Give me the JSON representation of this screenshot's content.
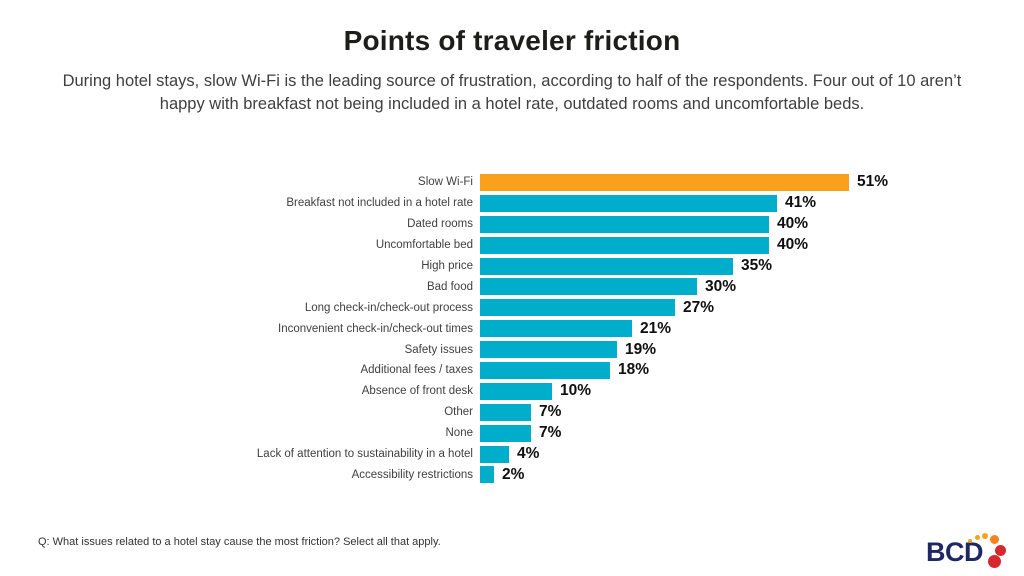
{
  "title": "Points of traveler friction",
  "subtitle": "During hotel stays, slow Wi-Fi is the leading source of frustration, according to half of the respondents. Four out of 10 aren’t happy with breakfast not being included in a hotel rate, outdated rooms and uncomfortable beds.",
  "footnote": "Q: What issues related to a hotel stay cause the most friction? Select all that apply.",
  "logo": {
    "text": "BCD"
  },
  "colors": {
    "bar": "#00AECB",
    "highlight": "#F9A01C",
    "logo_navy": "#1E2864",
    "logo_orange": "#F9A01C",
    "logo_orange2": "#F58220",
    "logo_red": "#D7282F"
  },
  "chart_data": {
    "type": "bar",
    "orientation": "horizontal",
    "title": "Points of traveler friction",
    "categories": [
      "Slow Wi-Fi",
      "Breakfast not included in a hotel rate",
      "Dated rooms",
      "Uncomfortable bed",
      "High price",
      "Bad food",
      "Long check-in/check-out process",
      "Inconvenient check-in/check-out times",
      "Safety issues",
      "Additional fees / taxes",
      "Absence of front desk",
      "Other",
      "None",
      "Lack of attention to sustainability in a hotel",
      "Accessibility restrictions"
    ],
    "values": [
      51,
      41,
      40,
      40,
      35,
      30,
      27,
      21,
      19,
      18,
      10,
      7,
      7,
      4,
      2
    ],
    "value_labels": [
      "51%",
      "41%",
      "40%",
      "40%",
      "35%",
      "30%",
      "27%",
      "21%",
      "19%",
      "18%",
      "10%",
      "7%",
      "7%",
      "4%",
      "2%"
    ],
    "highlight_index": 0,
    "xlim": [
      0,
      55
    ],
    "grid": false,
    "legend": false,
    "xlabel": "",
    "ylabel": ""
  }
}
